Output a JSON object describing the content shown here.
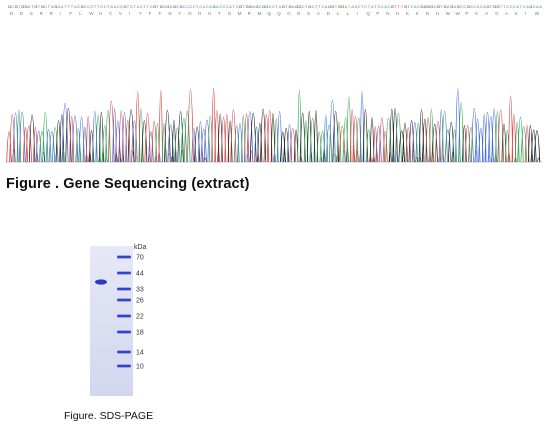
{
  "sequencing_figure": {
    "caption": "Figure . Gene Sequencing (extract)"
  },
  "sds_figure": {
    "unit_label": "kDa",
    "markers": [
      "70",
      "44",
      "33",
      "26",
      "22",
      "18",
      "14",
      "10"
    ],
    "caption": "Figure. SDS-PAGE"
  },
  "colors": {
    "trace_A": "#3aa55a",
    "trace_C": "#4a6bd6",
    "trace_G": "#222222",
    "trace_T": "#d84545",
    "gel_background": "#d9dcf0",
    "band": "#3344cc"
  }
}
